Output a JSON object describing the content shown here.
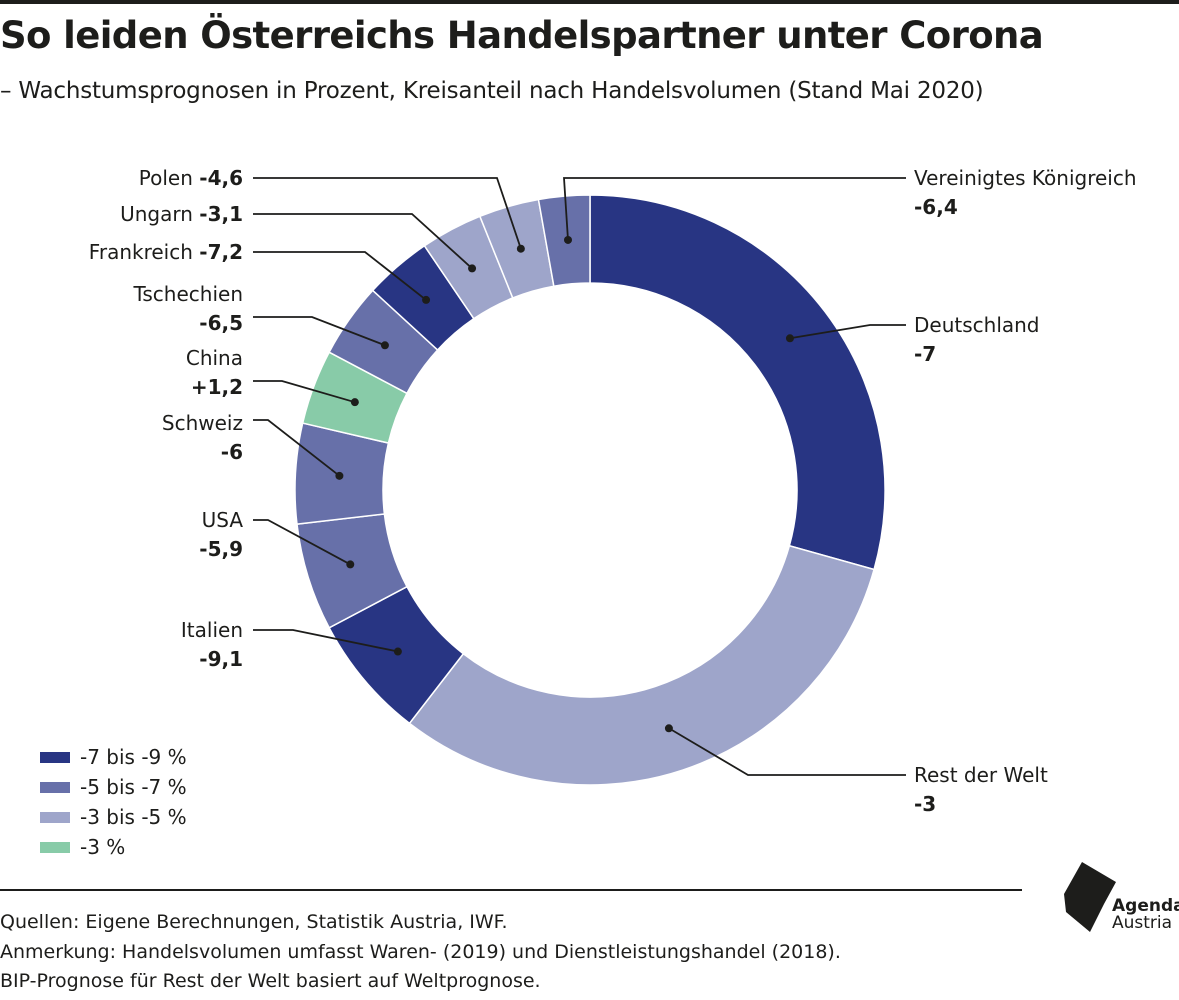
{
  "title": "So leiden Österreichs Handelspartner unter Corona",
  "subtitle": "– Wachstumsprognosen in Prozent, Kreisanteil nach Handelsvolumen (Stand Mai 2020)",
  "colors": {
    "class_7_9": "#283583",
    "class_5_7": "#6770a9",
    "class_3_5": "#9ea5ca",
    "class_3": "#88cba8"
  },
  "chart_data": {
    "type": "pie",
    "donut": true,
    "series": [
      {
        "name": "Deutschland",
        "value": -7,
        "value_label": "-7",
        "share": 29.4,
        "color": "#283583"
      },
      {
        "name": "Rest der Welt",
        "value": -3,
        "value_label": "-3",
        "share": 31.2,
        "color": "#9ea5ca"
      },
      {
        "name": "Italien",
        "value": -9.1,
        "value_label": "-9,1",
        "share": 6.8,
        "color": "#283583"
      },
      {
        "name": "USA",
        "value": -5.9,
        "value_label": "-5,9",
        "share": 5.9,
        "color": "#6770a9"
      },
      {
        "name": "Schweiz",
        "value": -6,
        "value_label": "-6",
        "share": 5.5,
        "color": "#6770a9"
      },
      {
        "name": "China",
        "value": 1.2,
        "value_label": "+1,2",
        "share": 4.1,
        "color": "#88cba8"
      },
      {
        "name": "Tschechien",
        "value": -6.5,
        "value_label": "-6,5",
        "share": 4.1,
        "color": "#6770a9"
      },
      {
        "name": "Frankreich",
        "value": -7.2,
        "value_label": "-7,2",
        "share": 3.7,
        "color": "#283583"
      },
      {
        "name": "Ungarn",
        "value": -3.1,
        "value_label": "-3,1",
        "share": 3.4,
        "color": "#9ea5ca"
      },
      {
        "name": "Polen",
        "value": -4.6,
        "value_label": "-4,6",
        "share": 3.3,
        "color": "#9ea5ca"
      },
      {
        "name": "Vereinigtes Königreich",
        "value": -6.4,
        "value_label": "-6,4",
        "share": 2.8,
        "color": "#6770a9"
      }
    ],
    "legend": [
      {
        "label": "-7 bis -9 %",
        "color": "#283583"
      },
      {
        "label": "-5 bis -7 %",
        "color": "#6770a9"
      },
      {
        "label": "-3 bis -5 %",
        "color": "#9ea5ca"
      },
      {
        "label": "-3 %",
        "color": "#88cba8"
      }
    ]
  },
  "notes": [
    "Quellen: Eigene Berechnungen, Statistik Austria, IWF.",
    "Anmerkung: Handelsvolumen umfasst Waren- (2019) und Dienstleistungshandel (2018).",
    "BIP-Prognose für Rest der Welt basiert auf Weltprognose."
  ],
  "logo": {
    "line1": "Agenda",
    "line2": "Austria"
  }
}
